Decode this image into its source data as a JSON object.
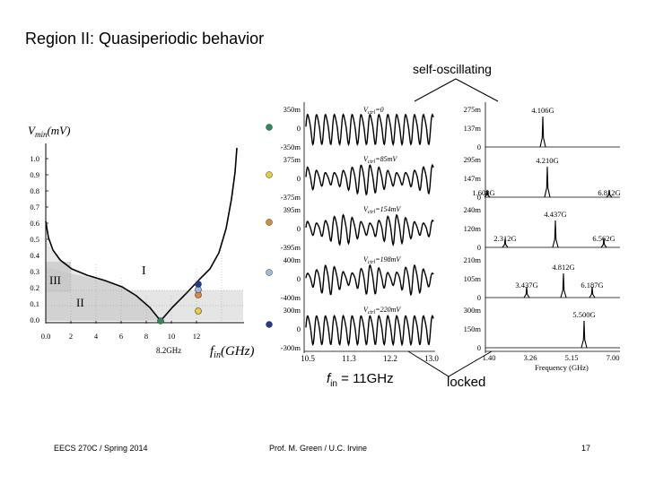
{
  "slide": {
    "title": "Region II:  Quasiperiodic behavior",
    "annotation_self_oscillating": "self-oscillating",
    "annotation_locked": "locked",
    "fin_label": {
      "f": "f",
      "sub": "in",
      "rest": " = 11GHz"
    }
  },
  "footer": {
    "course": "EECS 270C / Spring 2014",
    "author": "Prof. M. Green / U.C. Irvine",
    "page": "17"
  },
  "lock_range_plot": {
    "y_label": {
      "v": "V",
      "sub": "min",
      "rest": "(mV)"
    },
    "y_ticks": [
      "1.0",
      "0.9",
      "0.8",
      "0.7",
      "0.6",
      "0.5",
      "0.4",
      "0.3",
      "0.2",
      "0.1",
      "0.0"
    ],
    "x_ticks": [
      "0.0",
      "2",
      "4",
      "6",
      "8",
      "10",
      "12"
    ],
    "x_label": {
      "f": "f",
      "sub": "in",
      "rest": "(GHz)"
    },
    "center_note": "8.2GHz",
    "region_labels": [
      "I",
      "II",
      "III"
    ],
    "markers": [
      {
        "color": "#2e8b57"
      },
      {
        "color": "#e6cf3c"
      },
      {
        "color": "#d98b3a"
      },
      {
        "color": "#9fb9e3"
      },
      {
        "color": "#1f3a93"
      }
    ]
  },
  "waveforms": {
    "rows": [
      {
        "top": "350m",
        "mid": "0",
        "bot": "-350m",
        "note": {
          "v": "V",
          "sub": "ctrl",
          "val": "=0"
        }
      },
      {
        "top": "375m",
        "mid": "0",
        "bot": "-375m",
        "note": {
          "v": "V",
          "sub": "ctrl",
          "val": "=85mV"
        }
      },
      {
        "top": "395m",
        "mid": "0",
        "bot": "-395m",
        "note": {
          "v": "V",
          "sub": "ctrl",
          "val": "=154mV"
        }
      },
      {
        "top": "400m",
        "mid": "0",
        "bot": "-400m",
        "note": {
          "v": "V",
          "sub": "ctrl",
          "val": "=198mV"
        }
      },
      {
        "top": "300m",
        "mid": "0",
        "bot": "-300m",
        "note": {
          "v": "V",
          "sub": "ctrl",
          "val": "=220mV"
        }
      }
    ],
    "x_ticks": [
      "10.5",
      "11.3",
      "12.2",
      "13.0"
    ]
  },
  "spectra": {
    "rows": [
      {
        "top": "275m",
        "mid": "137m",
        "bot": "0",
        "peaks": [
          "4.106G"
        ]
      },
      {
        "top": "295m",
        "mid": "147m",
        "bot": "0",
        "peaks": [
          "4.210G",
          "1.608G",
          "6.812G"
        ]
      },
      {
        "top": "240m",
        "mid": "120m",
        "bot": "0",
        "peaks": [
          "4.437G",
          "2.312G",
          "6.562G"
        ]
      },
      {
        "top": "210m",
        "mid": "105m",
        "bot": "0",
        "peaks": [
          "4.812G",
          "3.437G",
          "6.187G"
        ]
      },
      {
        "top": "300m",
        "mid": "150m",
        "bot": "0",
        "peaks": [
          "5.500G"
        ]
      }
    ],
    "x_ticks": [
      "1.40",
      "3.26",
      "5.15",
      "7.00"
    ],
    "x_label": "Frequency (GHz)"
  }
}
